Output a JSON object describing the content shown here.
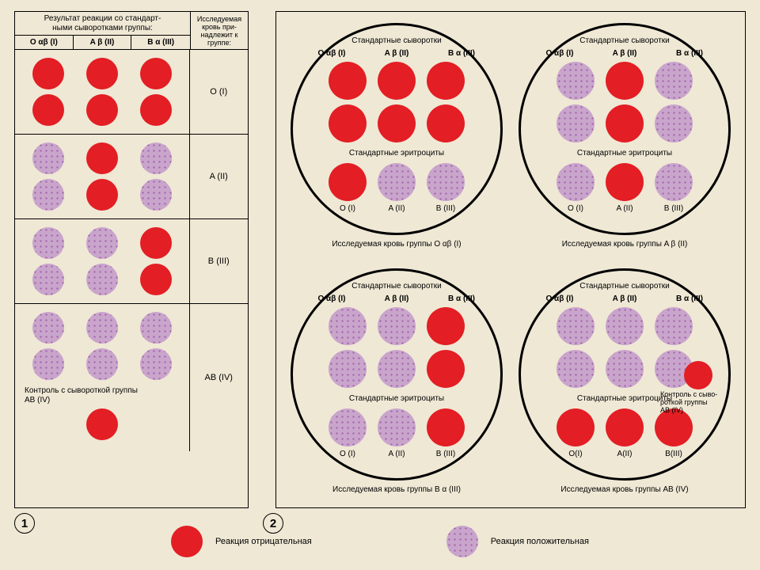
{
  "colors": {
    "background": "#efe8d5",
    "negative": "#e31e24",
    "positive_base": "#c9a5cc",
    "positive_speckle": "#a05fa8",
    "border": "#000000"
  },
  "serum_labels": {
    "O": "O αβ (I)",
    "A": "A β (II)",
    "B": "B α (III)"
  },
  "erythrocyte_labels": {
    "O": "O (I)",
    "A": "A (II)",
    "B": "B (III)"
  },
  "left": {
    "title": "Результат реакции со стандарт-\nными сыворотками группы:",
    "right_header": "Исследуемая кровь при-\nнадлежит к группе:",
    "rows": [
      {
        "group": "O (I)",
        "pattern": [
          "red",
          "red",
          "red",
          "red",
          "red",
          "red"
        ]
      },
      {
        "group": "A (II)",
        "pattern": [
          "purple",
          "red",
          "purple",
          "purple",
          "red",
          "purple"
        ]
      },
      {
        "group": "B (III)",
        "pattern": [
          "purple",
          "purple",
          "red",
          "purple",
          "purple",
          "red"
        ]
      },
      {
        "group": "AB (IV)",
        "pattern": [
          "purple",
          "purple",
          "purple",
          "purple",
          "purple",
          "purple"
        ]
      }
    ],
    "control_label": "Контроль с сывороткой группы\nAB (IV)",
    "control_dot": "red"
  },
  "right": {
    "sera_title": "Стандартные сыворотки",
    "ery_title": "Стандартные эритроциты",
    "petri": [
      {
        "sera": [
          "red",
          "red",
          "red",
          "red",
          "red",
          "red"
        ],
        "ery": [
          "red",
          "purple",
          "purple"
        ],
        "caption": "Исследуемая кровь группы O αβ (I)"
      },
      {
        "sera": [
          "purple",
          "red",
          "purple",
          "purple",
          "red",
          "purple"
        ],
        "ery": [
          "purple",
          "red",
          "purple"
        ],
        "caption": "Исследуемая кровь группы A β (II)"
      },
      {
        "sera": [
          "purple",
          "purple",
          "red",
          "purple",
          "purple",
          "red"
        ],
        "ery": [
          "purple",
          "purple",
          "red"
        ],
        "caption": "Исследуемая кровь группы B α (III)"
      },
      {
        "sera": [
          "purple",
          "purple",
          "purple",
          "purple",
          "purple",
          "purple"
        ],
        "ery": [
          "red",
          "red",
          "red"
        ],
        "ery_labels": [
          "O(I)",
          "A(II)",
          "B(III)"
        ],
        "side_note": "Контроль с сыво-\nроткой группы\nAB (IV)",
        "side_dot": "red",
        "caption": "Исследуемая кровь группы AB (IV)"
      }
    ]
  },
  "legend": {
    "neg": "Реакция отрицательная",
    "pos": "Реакция положительная"
  },
  "markers": {
    "one": "1",
    "two": "2"
  }
}
